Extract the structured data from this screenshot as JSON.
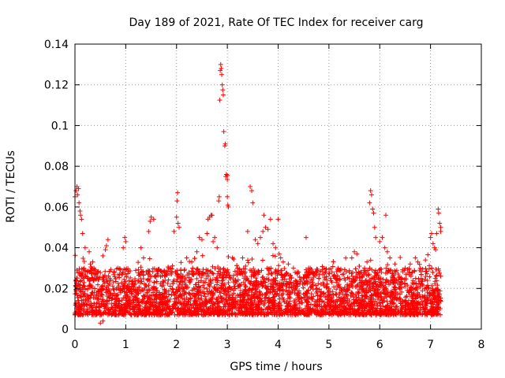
{
  "chart_data": {
    "type": "scatter",
    "title": "Day 189 of 2021, Rate Of TEC Index for receiver carg",
    "xlabel": "GPS time / hours",
    "ylabel": "ROTI / TECUs",
    "xlim": [
      0,
      8
    ],
    "ylim": [
      0,
      0.14
    ],
    "x_ticks": [
      0,
      1,
      2,
      3,
      4,
      5,
      6,
      7,
      8
    ],
    "x_tick_labels": [
      "0",
      "1",
      "2",
      "3",
      "4",
      "5",
      "6",
      "7",
      "8"
    ],
    "y_ticks": [
      0,
      0.02,
      0.04,
      0.06,
      0.08,
      0.1,
      0.12,
      0.14
    ],
    "y_tick_labels": [
      "0",
      "0.02",
      "0.04",
      "0.06",
      "0.08",
      "0.1",
      "0.12",
      "0.14"
    ],
    "grid": true,
    "marker": "+",
    "marker_color": "#ff0000",
    "series": [
      {
        "name": "ROTI",
        "points": [
          [
            0.0,
            0.065
          ],
          [
            0.02,
            0.068
          ],
          [
            0.04,
            0.07
          ],
          [
            0.05,
            0.066
          ],
          [
            0.07,
            0.069
          ],
          [
            0.08,
            0.062
          ],
          [
            0.1,
            0.058
          ],
          [
            0.11,
            0.056
          ],
          [
            0.13,
            0.054
          ],
          [
            0.15,
            0.047
          ],
          [
            0.2,
            0.04
          ],
          [
            0.28,
            0.038
          ],
          [
            0.35,
            0.033
          ],
          [
            0.5,
            0.003
          ],
          [
            0.55,
            0.004
          ],
          [
            0.55,
            0.036
          ],
          [
            0.6,
            0.039
          ],
          [
            0.62,
            0.041
          ],
          [
            0.65,
            0.044
          ],
          [
            0.95,
            0.04
          ],
          [
            0.98,
            0.045
          ],
          [
            1.0,
            0.043
          ],
          [
            1.3,
            0.04
          ],
          [
            1.35,
            0.035
          ],
          [
            1.45,
            0.048
          ],
          [
            1.48,
            0.053
          ],
          [
            1.5,
            0.055
          ],
          [
            1.55,
            0.054
          ],
          [
            1.85,
            0.03
          ],
          [
            1.95,
            0.048
          ],
          [
            2.0,
            0.055
          ],
          [
            2.01,
            0.063
          ],
          [
            2.02,
            0.067
          ],
          [
            2.03,
            0.052
          ],
          [
            2.05,
            0.05
          ],
          [
            2.2,
            0.035
          ],
          [
            2.3,
            0.033
          ],
          [
            2.4,
            0.038
          ],
          [
            2.45,
            0.045
          ],
          [
            2.5,
            0.044
          ],
          [
            2.6,
            0.047
          ],
          [
            2.62,
            0.054
          ],
          [
            2.65,
            0.055
          ],
          [
            2.68,
            0.056
          ],
          [
            2.7,
            0.056
          ],
          [
            2.72,
            0.043
          ],
          [
            2.8,
            0.04
          ],
          [
            2.85,
            0.1125
          ],
          [
            2.86,
            0.127
          ],
          [
            2.87,
            0.13
          ],
          [
            2.88,
            0.128
          ],
          [
            2.89,
            0.125
          ],
          [
            2.9,
            0.12
          ],
          [
            2.91,
            0.1175
          ],
          [
            2.92,
            0.115
          ],
          [
            2.93,
            0.097
          ],
          [
            2.95,
            0.09
          ],
          [
            2.96,
            0.091
          ],
          [
            2.97,
            0.075
          ],
          [
            2.98,
            0.076
          ],
          [
            3.0,
            0.0755
          ],
          [
            3.0,
            0.0735
          ],
          [
            3.0,
            0.065
          ],
          [
            3.01,
            0.061
          ],
          [
            3.02,
            0.06
          ],
          [
            2.83,
            0.063
          ],
          [
            2.84,
            0.065
          ],
          [
            2.75,
            0.045
          ],
          [
            3.1,
            0.035
          ],
          [
            3.2,
            0.03
          ],
          [
            3.3,
            0.035
          ],
          [
            3.4,
            0.048
          ],
          [
            3.45,
            0.07
          ],
          [
            3.48,
            0.068
          ],
          [
            3.5,
            0.062
          ],
          [
            3.55,
            0.044
          ],
          [
            3.6,
            0.042
          ],
          [
            3.65,
            0.045
          ],
          [
            3.7,
            0.048
          ],
          [
            3.72,
            0.056
          ],
          [
            3.75,
            0.05
          ],
          [
            3.8,
            0.049
          ],
          [
            3.85,
            0.054
          ],
          [
            3.9,
            0.042
          ],
          [
            3.95,
            0.04
          ],
          [
            4.0,
            0.054
          ],
          [
            4.02,
            0.037
          ],
          [
            4.05,
            0.035
          ],
          [
            4.1,
            0.033
          ],
          [
            4.2,
            0.032
          ],
          [
            4.3,
            0.03
          ],
          [
            4.4,
            0.028
          ],
          [
            4.5,
            0.025
          ],
          [
            4.55,
            0.045
          ],
          [
            4.6,
            0.03
          ],
          [
            4.7,
            0.027
          ],
          [
            4.8,
            0.025
          ],
          [
            4.9,
            0.022
          ],
          [
            5.0,
            0.02
          ],
          [
            5.2,
            0.022
          ],
          [
            5.3,
            0.025
          ],
          [
            5.4,
            0.028
          ],
          [
            5.45,
            0.035
          ],
          [
            5.5,
            0.038
          ],
          [
            5.55,
            0.037
          ],
          [
            5.7,
            0.03
          ],
          [
            5.75,
            0.033
          ],
          [
            5.8,
            0.062
          ],
          [
            5.82,
            0.068
          ],
          [
            5.84,
            0.066
          ],
          [
            5.86,
            0.059
          ],
          [
            5.88,
            0.057
          ],
          [
            5.9,
            0.05
          ],
          [
            5.92,
            0.045
          ],
          [
            6.0,
            0.043
          ],
          [
            6.05,
            0.045
          ],
          [
            6.1,
            0.04
          ],
          [
            6.12,
            0.056
          ],
          [
            6.15,
            0.038
          ],
          [
            6.2,
            0.035
          ],
          [
            6.3,
            0.032
          ],
          [
            6.5,
            0.03
          ],
          [
            6.6,
            0.032
          ],
          [
            6.7,
            0.035
          ],
          [
            6.75,
            0.033
          ],
          [
            6.8,
            0.03
          ],
          [
            6.9,
            0.034
          ],
          [
            7.0,
            0.045
          ],
          [
            7.02,
            0.047
          ],
          [
            7.05,
            0.042
          ],
          [
            7.08,
            0.04
          ],
          [
            7.1,
            0.039
          ],
          [
            7.12,
            0.047
          ],
          [
            7.15,
            0.059
          ],
          [
            7.16,
            0.057
          ],
          [
            7.18,
            0.052
          ],
          [
            7.2,
            0.05
          ],
          [
            7.2,
            0.048
          ]
        ],
        "dense_band": {
          "x_range": [
            0,
            7.2
          ],
          "y_floor": 0.005,
          "y_typical_upper": 0.03,
          "note": "dense continuous cloud of points between roughly 0.005 and 0.03 TECUs over 0-7.2 h"
        }
      }
    ]
  }
}
